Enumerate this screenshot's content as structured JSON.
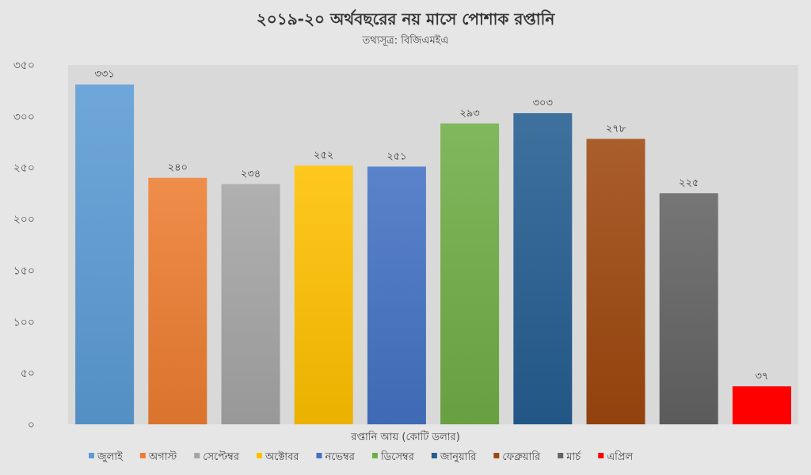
{
  "chart_data": {
    "type": "bar",
    "title": "২০১৯-২০ অর্থবছরের নয় মাসে পোশাক রপ্তানি",
    "subtitle": "তথ্যসূত্র: বিজিএমইএ",
    "xlabel": "রপ্তানি আয় (কোটি ডলার)",
    "ylabel": "",
    "ylim": [
      0,
      350
    ],
    "yticks": [
      0,
      50,
      100,
      150,
      200,
      250,
      300,
      350
    ],
    "ytick_labels": [
      "০",
      "৫০",
      "১০০",
      "১৫০",
      "২০০",
      "২৫০",
      "৩০০",
      "৩৫০"
    ],
    "legend_position": "bottom",
    "grid": false,
    "plot_background": "#d9d9d9",
    "series": [
      {
        "name": "জুলাই",
        "value": 331,
        "label": "৩৩১",
        "color": "#5b9bd5"
      },
      {
        "name": "অগাস্ট",
        "value": 240,
        "label": "২৪০",
        "color": "#ed7d31"
      },
      {
        "name": "সেপ্টেম্বর",
        "value": 234,
        "label": "২৩৪",
        "color": "#a5a5a5"
      },
      {
        "name": "অক্টোবর",
        "value": 252,
        "label": "২৫২",
        "color": "#ffc000"
      },
      {
        "name": "নভেম্বর",
        "value": 251,
        "label": "২৫১",
        "color": "#4472c4"
      },
      {
        "name": "ডিসেম্বর",
        "value": 293,
        "label": "২৯৩",
        "color": "#70ad47"
      },
      {
        "name": "জানুয়ারি",
        "value": 303,
        "label": "৩০৩",
        "color": "#255e91"
      },
      {
        "name": "ফেব্রুয়ারি",
        "value": 278,
        "label": "২৭৮",
        "color": "#9e480e"
      },
      {
        "name": "মার্চ",
        "value": 225,
        "label": "২২৫",
        "color": "#636363"
      },
      {
        "name": "এপ্রিল",
        "value": 37,
        "label": "৩৭",
        "color": "#ff0000"
      }
    ]
  }
}
